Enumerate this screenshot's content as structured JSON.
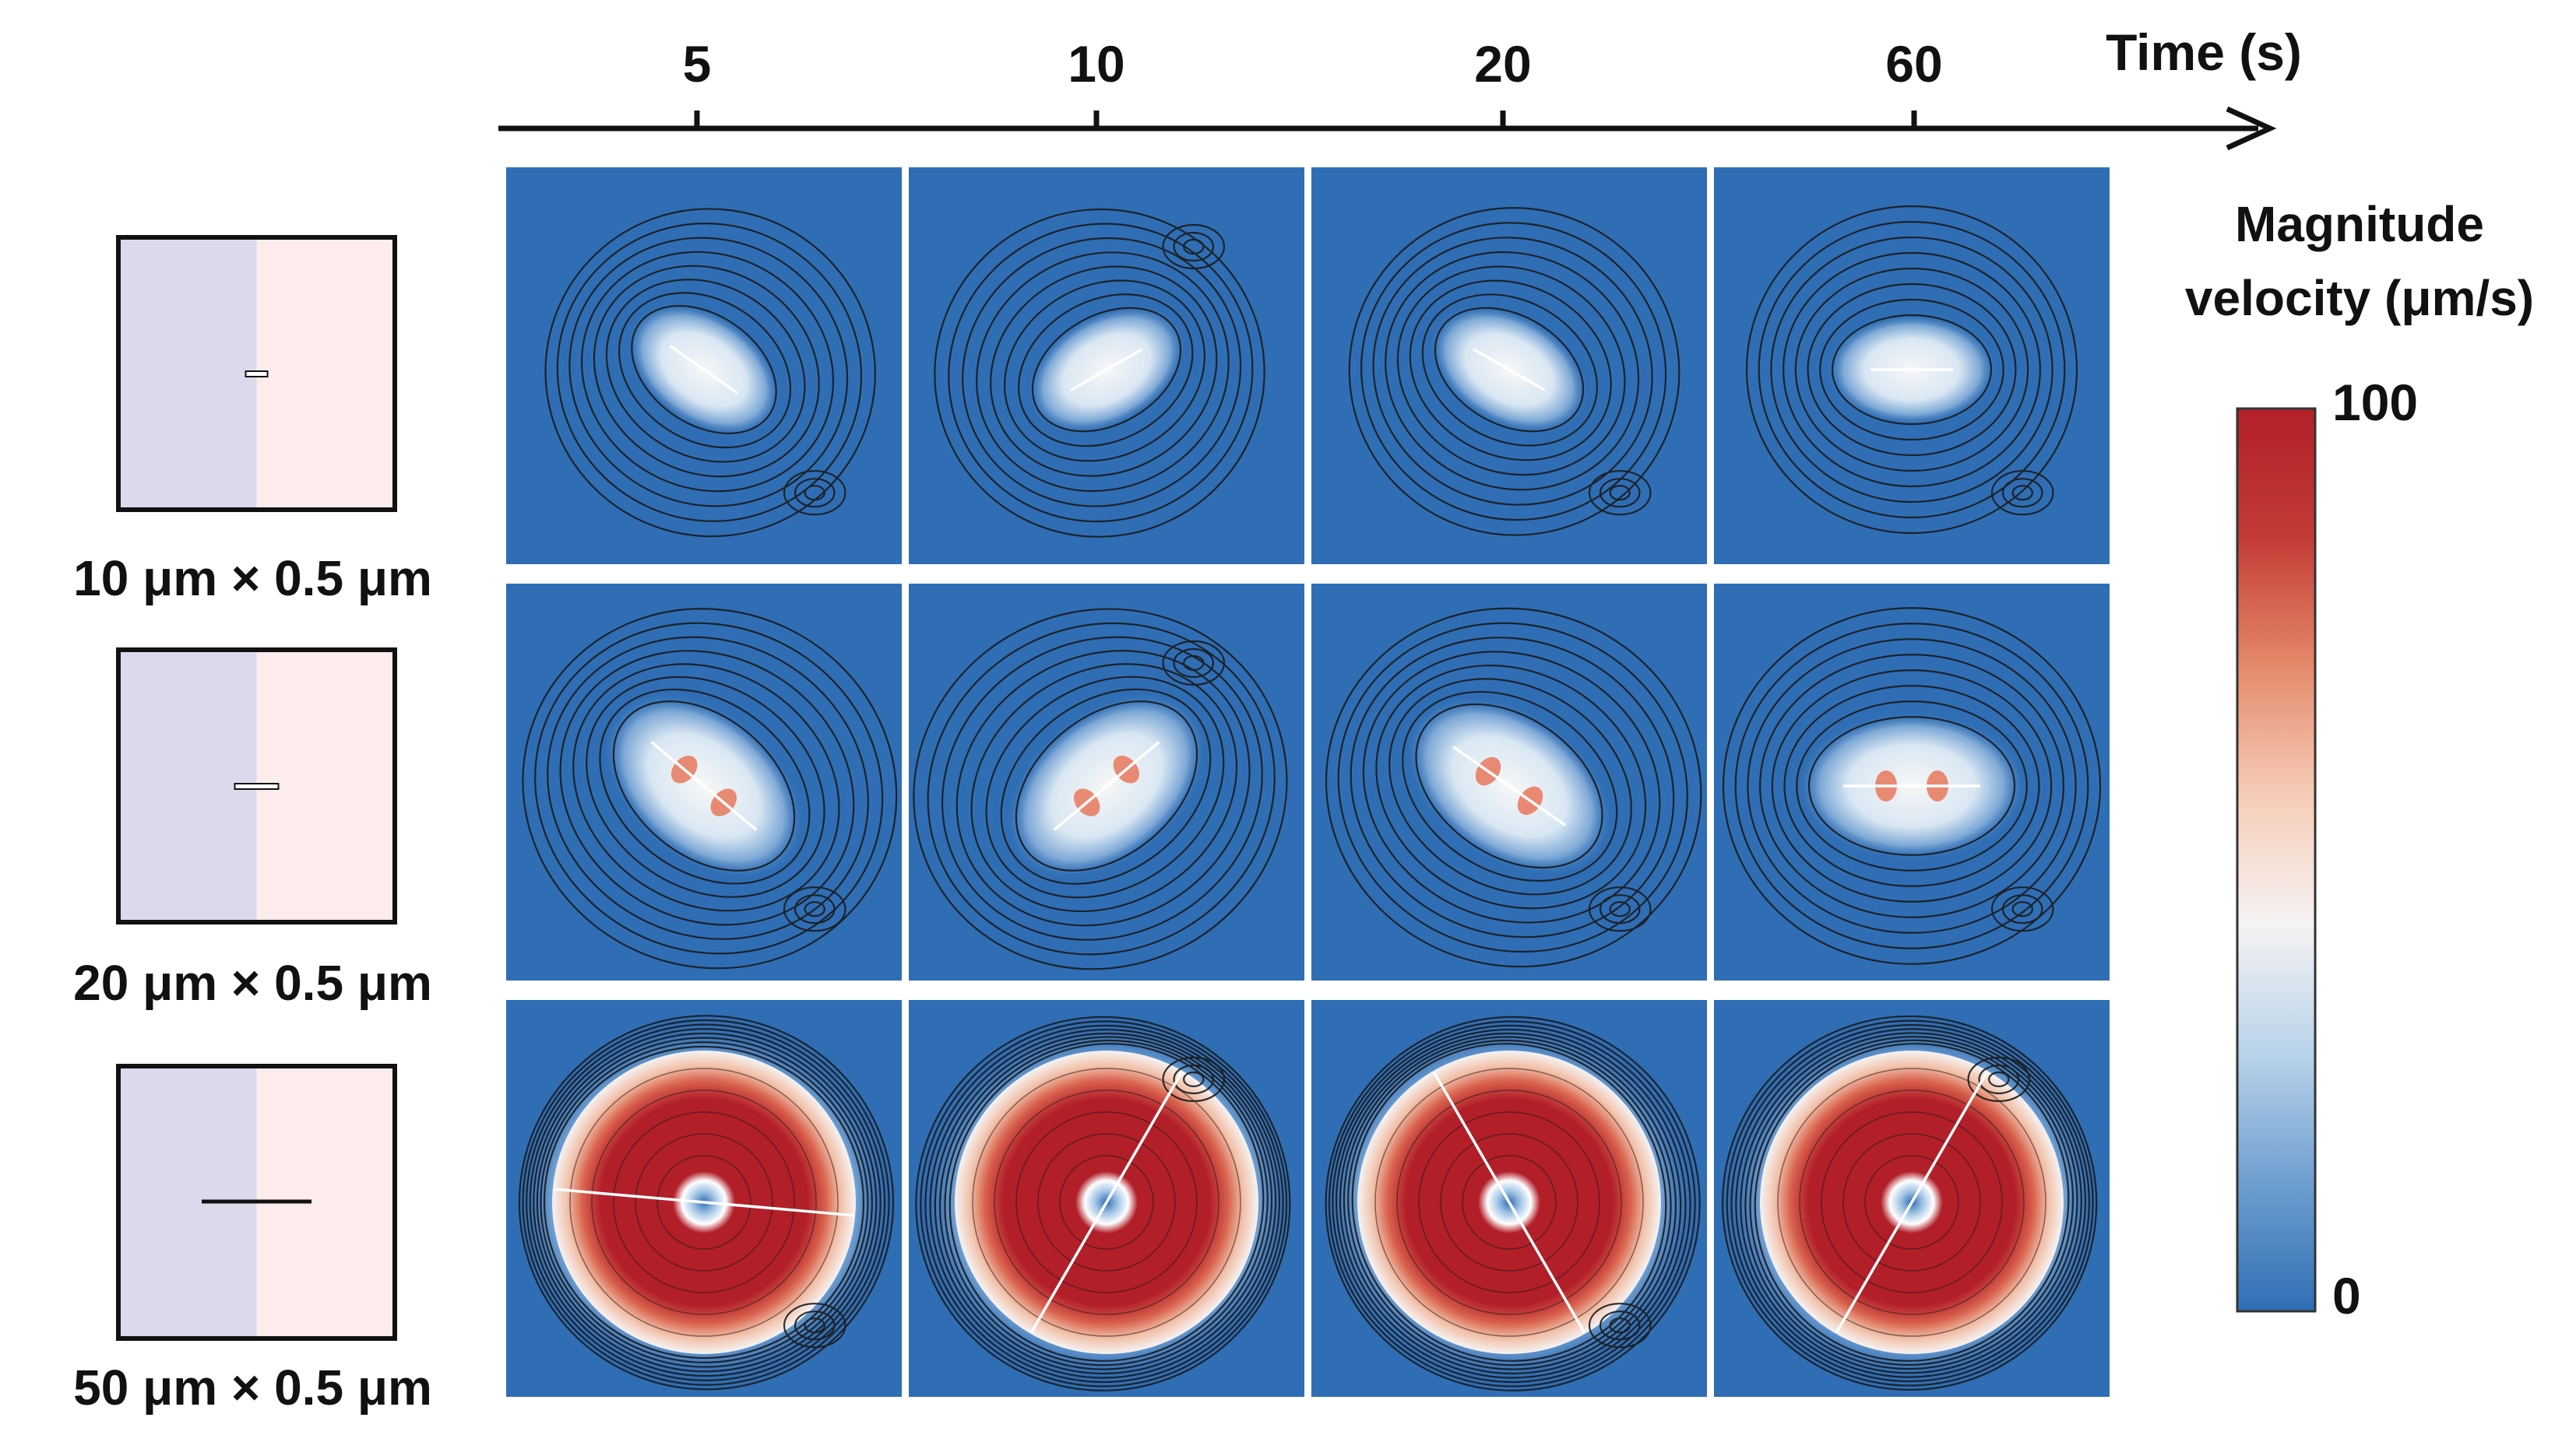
{
  "figure": {
    "time_axis": {
      "label": "Time (s)",
      "ticks": [
        "5",
        "10",
        "20",
        "60"
      ]
    },
    "rows": [
      {
        "size_label": "10 μm × 0.5 μm",
        "rod_length_um": 10,
        "rod_width_um": 0.5,
        "panels": [
          {
            "time": "5",
            "rod_angle_deg": 35,
            "peak_level": 0.42,
            "lobe_scale": 0.6,
            "curl": 0.9
          },
          {
            "time": "10",
            "rod_angle_deg": -30,
            "peak_level": 0.4,
            "lobe_scale": 0.6,
            "curl": -1.0
          },
          {
            "time": "20",
            "rod_angle_deg": 30,
            "peak_level": 0.4,
            "lobe_scale": 0.6,
            "curl": 0.7
          },
          {
            "time": "60",
            "rod_angle_deg": 0,
            "peak_level": 0.4,
            "lobe_scale": 0.6,
            "curl": 0.0
          }
        ]
      },
      {
        "size_label": "20 μm × 0.5 μm",
        "rod_length_um": 20,
        "rod_width_um": 0.5,
        "panels": [
          {
            "time": "5",
            "rod_angle_deg": 40,
            "peak_level": 0.85,
            "lobe_scale": 0.85,
            "curl": 0.8
          },
          {
            "time": "10",
            "rod_angle_deg": -40,
            "peak_level": 0.85,
            "lobe_scale": 0.85,
            "curl": -0.9
          },
          {
            "time": "20",
            "rod_angle_deg": 35,
            "peak_level": 0.85,
            "lobe_scale": 0.85,
            "curl": 0.6
          },
          {
            "time": "60",
            "rod_angle_deg": 0,
            "peak_level": 0.85,
            "lobe_scale": 0.85,
            "curl": 0.0
          }
        ]
      },
      {
        "size_label": "50 μm × 0.5 μm",
        "rod_length_um": 50,
        "rod_width_um": 0.5,
        "panels": [
          {
            "time": "5",
            "rod_angle_deg": 5,
            "peak_level": 1.0,
            "lobe_scale": 1.0,
            "curl": 0.3
          },
          {
            "time": "10",
            "rod_angle_deg": -60,
            "peak_level": 1.0,
            "lobe_scale": 1.0,
            "curl": -0.5
          },
          {
            "time": "20",
            "rod_angle_deg": 60,
            "peak_level": 1.0,
            "lobe_scale": 1.0,
            "curl": 0.5
          },
          {
            "time": "60",
            "rod_angle_deg": -60,
            "peak_level": 1.0,
            "lobe_scale": 1.0,
            "curl": -0.3
          }
        ]
      }
    ],
    "colorbar": {
      "title_line1": "Magnitude",
      "title_line2": "velocity (μm/s)",
      "max_label": "100",
      "min_label": "0",
      "min_value": 0,
      "max_value": 100,
      "colors": [
        "#2f6eb5",
        "#6f9fd0",
        "#b9d3ea",
        "#f5f3f3",
        "#f6cdb8",
        "#e58a6c",
        "#c23b35",
        "#b21f29"
      ]
    },
    "schematic": {
      "left_fill": "#dcd9ec",
      "right_fill": "#fdecec",
      "border_color": "#111111"
    },
    "field_colors": {
      "background": "#2f6eb5",
      "streamline": "#1a1a1a",
      "rod": "#ffffff"
    }
  }
}
